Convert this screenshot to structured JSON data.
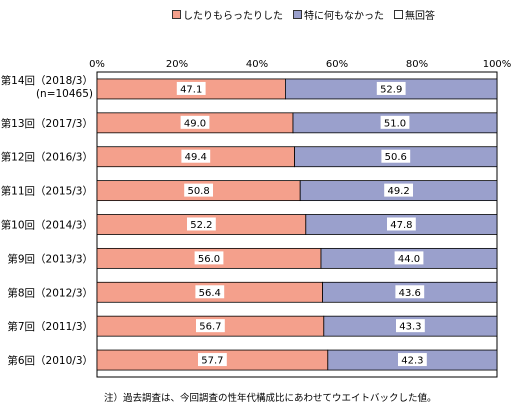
{
  "chart_data": {
    "type": "bar",
    "orientation": "horizontal",
    "stacked": true,
    "percent": true,
    "categories": [
      "第14回（2018/3）\n(n=10465)",
      "第13回（2017/3）",
      "第12回（2016/3）",
      "第11回（2015/3）",
      "第10回（2014/3）",
      "第9回（2013/3）",
      "第8回（2012/3）",
      "第7回（2011/3）",
      "第6回（2010/3）"
    ],
    "series": [
      {
        "name": "したりもらったりした",
        "color": "#f4a08c",
        "values": [
          47.1,
          49.0,
          49.4,
          50.8,
          52.2,
          56.0,
          56.4,
          56.7,
          57.7
        ]
      },
      {
        "name": "特に何もなかった",
        "color": "#9aa0cc",
        "values": [
          52.9,
          51.0,
          50.6,
          49.2,
          47.8,
          44.0,
          43.6,
          43.3,
          42.3
        ]
      },
      {
        "name": "無回答",
        "color": "#ffffff",
        "values": [
          0,
          0,
          0,
          0,
          0,
          0,
          0,
          0,
          0
        ]
      }
    ],
    "xlim": [
      0,
      100
    ],
    "xticks": [
      "0%",
      "20%",
      "40%",
      "60%",
      "80%",
      "100%"
    ],
    "legend": "top",
    "grid": false
  },
  "footnote": "注）過去調査は、今回調査の性年代構成比にあわせてウエイトバックした値。"
}
